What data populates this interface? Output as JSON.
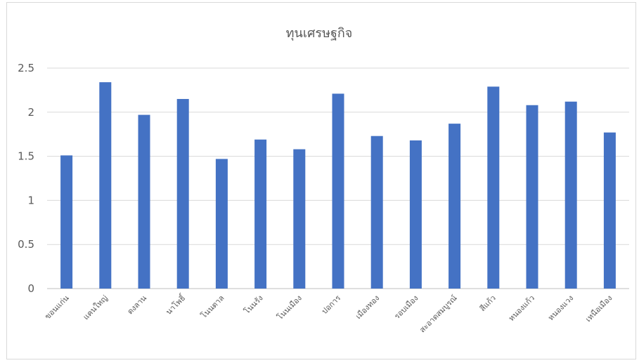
{
  "chart_data": {
    "type": "bar",
    "title": "ทุนเศรษฐกิจ",
    "categories": [
      "ขอนแก่น",
      "แคนใหญ่",
      "ดงลาน",
      "นาโพธิ์",
      "โนนตาล",
      "โนนรัง",
      "โนนเมือง",
      "ปอการ",
      "เมืองทอง",
      "รอบเมือง",
      "สะอาดสมบูรณ์",
      "สีแก้ว",
      "หนองแก้ว",
      "หนองแวง",
      "เหนือเมือง"
    ],
    "values": [
      1.51,
      2.34,
      1.97,
      2.15,
      1.47,
      1.69,
      1.58,
      2.21,
      1.73,
      1.68,
      1.87,
      2.29,
      2.08,
      2.12,
      1.77
    ],
    "ylim": [
      0,
      2.5
    ],
    "yticks": [
      "0",
      "0.5",
      "1",
      "1.5",
      "2",
      "2.5"
    ],
    "grid": true,
    "bar_color": "#4472c4",
    "grid_color": "#d9d9d9"
  }
}
